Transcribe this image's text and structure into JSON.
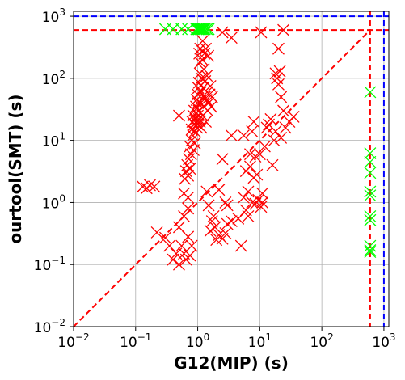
{
  "chart_data": {
    "type": "scatter",
    "title": "",
    "xlabel": "G12(MIP) (s)",
    "ylabel": "ourtool(SMT) (s)",
    "xscale": "log",
    "yscale": "log",
    "xlim": [
      0.01,
      1200
    ],
    "ylim": [
      0.01,
      1200
    ],
    "grid": true,
    "legend": "none",
    "marker": "x",
    "x_ticks": [
      0.01,
      0.1,
      1,
      10,
      100,
      1000
    ],
    "x_tick_labels": [
      {
        "base": "10",
        "exp": "−2"
      },
      {
        "base": "10",
        "exp": "−1"
      },
      {
        "base": "10",
        "exp": "0"
      },
      {
        "base": "10",
        "exp": "1"
      },
      {
        "base": "10",
        "exp": "2"
      },
      {
        "base": "10",
        "exp": "3"
      }
    ],
    "y_ticks": [
      0.01,
      0.1,
      1,
      10,
      100,
      1000
    ],
    "y_tick_labels": [
      {
        "base": "10",
        "exp": "−2"
      },
      {
        "base": "10",
        "exp": "−1"
      },
      {
        "base": "10",
        "exp": "0"
      },
      {
        "base": "10",
        "exp": "1"
      },
      {
        "base": "10",
        "exp": "2"
      },
      {
        "base": "10",
        "exp": "3"
      }
    ],
    "reference_lines": [
      {
        "kind": "diagonal",
        "from": [
          0.01,
          0.01
        ],
        "to": [
          600,
          600
        ],
        "color": "#ff0000",
        "style": "dashed"
      },
      {
        "kind": "horizontal",
        "value": 600,
        "color": "#ff0000",
        "style": "dashed"
      },
      {
        "kind": "vertical",
        "value": 600,
        "color": "#ff0000",
        "style": "dashed"
      },
      {
        "kind": "horizontal",
        "value": 1000,
        "color": "#0000ff",
        "style": "dashed"
      },
      {
        "kind": "vertical",
        "value": 1000,
        "color": "#0000ff",
        "style": "dashed"
      }
    ],
    "series": [
      {
        "color": "#ff0000",
        "points": [
          [
            0.13,
            1.8
          ],
          [
            0.15,
            1.7
          ],
          [
            0.17,
            1.9
          ],
          [
            0.2,
            1.8
          ],
          [
            0.22,
            0.33
          ],
          [
            0.3,
            0.27
          ],
          [
            0.35,
            0.2
          ],
          [
            0.4,
            0.12
          ],
          [
            0.45,
            0.15
          ],
          [
            0.5,
            0.1
          ],
          [
            0.55,
            0.2
          ],
          [
            0.6,
            0.15
          ],
          [
            0.65,
            0.12
          ],
          [
            0.7,
            0.28
          ],
          [
            0.75,
            0.14
          ],
          [
            0.8,
            0.2
          ],
          [
            0.5,
            0.4
          ],
          [
            0.6,
            0.6
          ],
          [
            0.7,
            0.8
          ],
          [
            0.5,
            25
          ],
          [
            0.6,
            1.4
          ],
          [
            0.62,
            2.4
          ],
          [
            0.65,
            3.2
          ],
          [
            0.7,
            1.2
          ],
          [
            0.68,
            4
          ],
          [
            0.7,
            2.7
          ],
          [
            0.72,
            5
          ],
          [
            0.75,
            3.5
          ],
          [
            0.75,
            8
          ],
          [
            0.78,
            6
          ],
          [
            0.8,
            10
          ],
          [
            0.8,
            15
          ],
          [
            0.82,
            20
          ],
          [
            0.84,
            12
          ],
          [
            0.85,
            25
          ],
          [
            0.86,
            7
          ],
          [
            0.88,
            30
          ],
          [
            0.88,
            18
          ],
          [
            0.9,
            9
          ],
          [
            0.9,
            14
          ],
          [
            0.92,
            22
          ],
          [
            0.94,
            35
          ],
          [
            0.95,
            20
          ],
          [
            0.96,
            45
          ],
          [
            0.98,
            16
          ],
          [
            1.0,
            55
          ],
          [
            1.0,
            25
          ],
          [
            1.0,
            40
          ],
          [
            1.0,
            18
          ],
          [
            1.02,
            70
          ],
          [
            1.04,
            30
          ],
          [
            1.05,
            85
          ],
          [
            1.05,
            22
          ],
          [
            1.06,
            250
          ],
          [
            1.08,
            20
          ],
          [
            1.08,
            120
          ],
          [
            1.1,
            180
          ],
          [
            1.1,
            300
          ],
          [
            1.12,
            40
          ],
          [
            1.12,
            60
          ],
          [
            1.15,
            100
          ],
          [
            1.15,
            16
          ],
          [
            1.18,
            200
          ],
          [
            1.2,
            25
          ],
          [
            1.2,
            400
          ],
          [
            1.22,
            70
          ],
          [
            1.25,
            35
          ],
          [
            1.25,
            140
          ],
          [
            1.28,
            250
          ],
          [
            1.3,
            50
          ],
          [
            1.32,
            90
          ],
          [
            1.35,
            20
          ],
          [
            1.35,
            300
          ],
          [
            1.38,
            45
          ],
          [
            1.4,
            110
          ],
          [
            1.42,
            60
          ],
          [
            1.45,
            30
          ],
          [
            1.48,
            230
          ],
          [
            1.5,
            40
          ],
          [
            1.55,
            55
          ],
          [
            1.6,
            75
          ],
          [
            1.65,
            35
          ],
          [
            1.7,
            50
          ],
          [
            1.4,
            1.5
          ],
          [
            1.5,
            0.9
          ],
          [
            1.6,
            0.35
          ],
          [
            1.7,
            0.5
          ],
          [
            1.8,
            0.6
          ],
          [
            1.9,
            0.4
          ],
          [
            2.0,
            0.25
          ],
          [
            2.2,
            0.3
          ],
          [
            2.5,
            0.26
          ],
          [
            2.8,
            0.32
          ],
          [
            3.0,
            0.45
          ],
          [
            3.5,
            0.5
          ],
          [
            2.2,
            1.6
          ],
          [
            2.5,
            5
          ],
          [
            2.8,
            1.0
          ],
          [
            3.0,
            0.9
          ],
          [
            3.5,
            12
          ],
          [
            3.5,
            450
          ],
          [
            2.5,
            550
          ],
          [
            4.5,
            0.55
          ],
          [
            5.0,
            0.2
          ],
          [
            5.5,
            1.2
          ],
          [
            6.0,
            3.2
          ],
          [
            6.0,
            0.75
          ],
          [
            6.5,
            1.5
          ],
          [
            6.5,
            0.6
          ],
          [
            7.0,
            3.8
          ],
          [
            7.5,
            1.0
          ],
          [
            7.5,
            14
          ],
          [
            8.0,
            2.5
          ],
          [
            8.5,
            5.5
          ],
          [
            8.5,
            0.95
          ],
          [
            9.0,
            2.8
          ],
          [
            9.5,
            1.1
          ],
          [
            10.0,
            6
          ],
          [
            10.5,
            0.85
          ],
          [
            10.5,
            550
          ],
          [
            11.0,
            1.0
          ],
          [
            12.0,
            8
          ],
          [
            13.0,
            16
          ],
          [
            14.0,
            18
          ],
          [
            15.0,
            22
          ],
          [
            16.0,
            4
          ],
          [
            17.0,
            10
          ],
          [
            18.0,
            14
          ],
          [
            18.0,
            120
          ],
          [
            19.0,
            100
          ],
          [
            20.0,
            80
          ],
          [
            20.0,
            300
          ],
          [
            21.0,
            130
          ],
          [
            22.0,
            50
          ],
          [
            22.0,
            11
          ],
          [
            24.0,
            30
          ],
          [
            24.0,
            600
          ],
          [
            26.0,
            16
          ],
          [
            30.0,
            20
          ],
          [
            35.0,
            24
          ],
          [
            5.5,
            12
          ],
          [
            7.0,
            6
          ],
          [
            8.0,
            20
          ],
          [
            11.0,
            1.4
          ]
        ]
      },
      {
        "color": "#00ff00",
        "points": [
          [
            0.3,
            620
          ],
          [
            0.4,
            620
          ],
          [
            0.55,
            620
          ],
          [
            0.7,
            620
          ],
          [
            0.95,
            620
          ],
          [
            1.0,
            620
          ],
          [
            1.05,
            620
          ],
          [
            1.1,
            620
          ],
          [
            1.15,
            620
          ],
          [
            1.2,
            620
          ],
          [
            1.25,
            620
          ],
          [
            1.3,
            620
          ],
          [
            1.4,
            620
          ],
          [
            1.5,
            620
          ],
          [
            600,
            60
          ],
          [
            600,
            6.2
          ],
          [
            600,
            4.5
          ],
          [
            600,
            3.0
          ],
          [
            600,
            1.5
          ],
          [
            600,
            1.3
          ],
          [
            600,
            0.6
          ],
          [
            600,
            0.52
          ],
          [
            600,
            0.2
          ],
          [
            600,
            0.17
          ],
          [
            600,
            0.16
          ]
        ]
      }
    ]
  }
}
